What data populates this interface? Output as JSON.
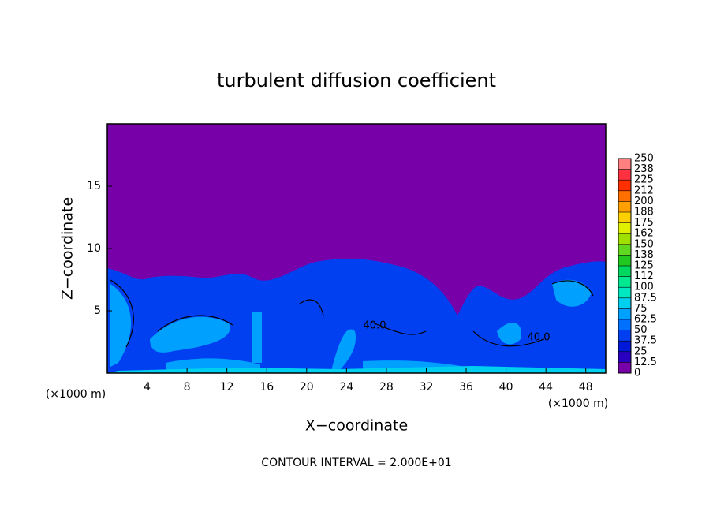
{
  "chart_data": {
    "type": "contour",
    "title": "turbulent diffusion coefficient",
    "x_label": "X−coordinate",
    "y_label": "Z−coordinate",
    "x_unit": "(×1000 m)",
    "x_unit_right": "(×1000 m)",
    "footer": "CONTOUR INTERVAL = 2.000E+01",
    "xlim": [
      0,
      50
    ],
    "xticks": [
      4,
      8,
      12,
      16,
      20,
      24,
      28,
      32,
      36,
      40,
      44,
      48
    ],
    "ylim": [
      0,
      20
    ],
    "yticks": [
      5,
      10,
      15
    ],
    "contour_labels": [
      "40.0",
      "40.0"
    ],
    "colorbar": {
      "levels": [
        0,
        12.5,
        25,
        37.5,
        50,
        62.5,
        75,
        87.5,
        100,
        {
          "value": 112.5,
          "label": "112"
        },
        125,
        {
          "value": 137.5,
          "label": "138"
        },
        150,
        {
          "value": 162.5,
          "label": "162"
        },
        175,
        {
          "value": 187.5,
          "label": "188"
        },
        200,
        {
          "value": 212.5,
          "label": "212"
        },
        225,
        {
          "value": 237.5,
          "label": "238"
        },
        250
      ],
      "colors": [
        "#7800a8",
        "#2a00c0",
        "#0018d8",
        "#0040f0",
        "#0070ff",
        "#00a0ff",
        "#00d0f0",
        "#00e8c0",
        "#00e890",
        "#00d860",
        "#20c820",
        "#60d820",
        "#a0e000",
        "#e0f000",
        "#ffd000",
        "#ffa000",
        "#ff7000",
        "#ff3000",
        "#ff3040",
        "#ff8080"
      ]
    }
  }
}
